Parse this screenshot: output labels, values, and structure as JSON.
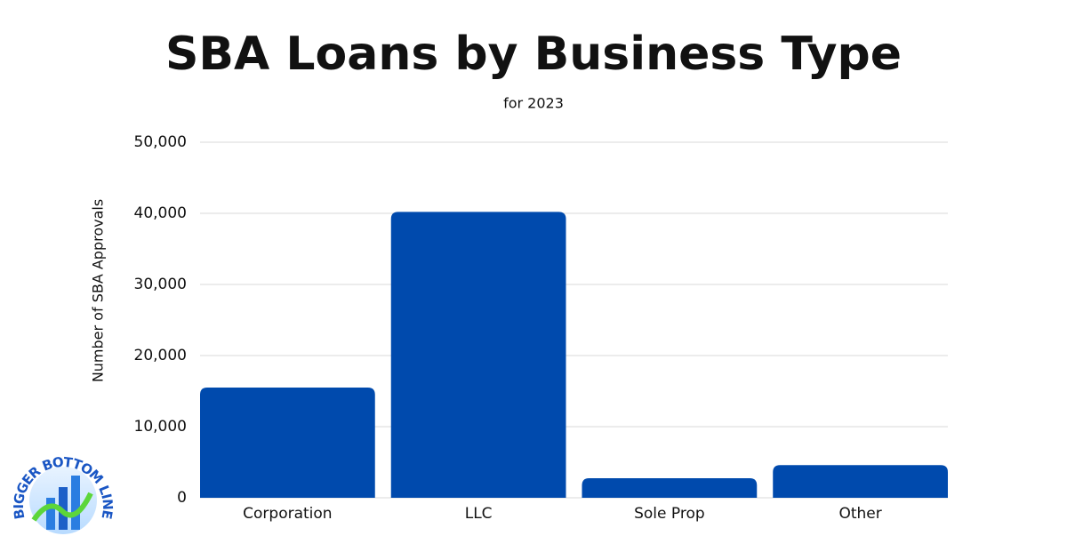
{
  "chart_data": {
    "type": "bar",
    "title": "SBA Loans by Business Type",
    "subtitle": "for 2023",
    "y_label": "Number of SBA Approvals",
    "categories": [
      "Corporation",
      "LLC",
      "Sole Prop",
      "Other"
    ],
    "values": [
      15500,
      40200,
      2750,
      4600
    ],
    "color": "#004aad",
    "ylim": [
      0,
      50000
    ],
    "yticks": [
      0,
      {
        "value": 10000,
        "label": "10,000"
      },
      {
        "value": 20000,
        "label": "20,000"
      },
      {
        "value": 30000,
        "label": "30,000"
      },
      {
        "value": 40000,
        "label": "40,000"
      },
      {
        "value": 50000,
        "label": "50,000"
      }
    ],
    "grid": true
  },
  "logo": {
    "text": "BIGGER BOTTOM LINE"
  }
}
